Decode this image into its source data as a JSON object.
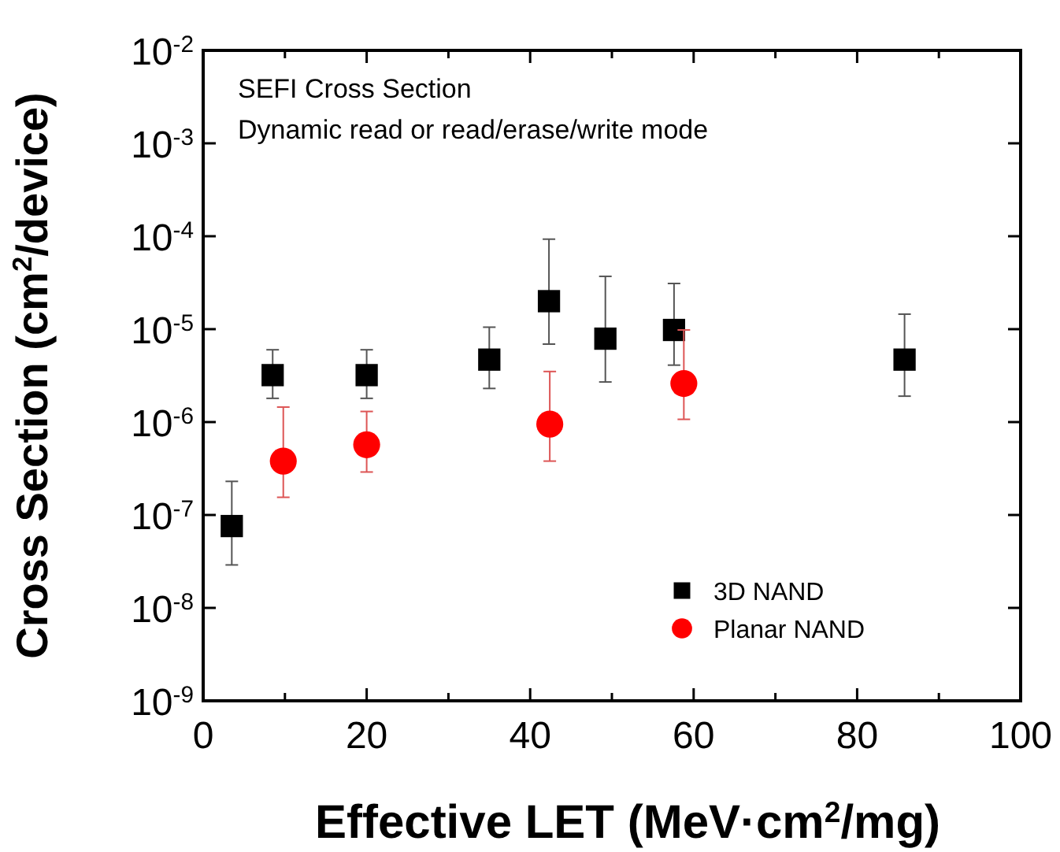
{
  "chart_data": {
    "type": "scatter",
    "xlabel": "Effective LET (MeV·cm$^{2}$/mg)",
    "ylabel": "Cross Section (cm$^{2}$/device)",
    "annotations": [
      "SEFI Cross Section",
      "Dynamic read or read/erase/write mode"
    ],
    "log": "y",
    "grid": false,
    "legend": "bottom right",
    "xlim": [
      0,
      100
    ],
    "xticks": [
      0,
      {
        "value": 10,
        "label": null
      },
      20,
      {
        "value": 30,
        "label": null
      },
      40,
      {
        "value": 50,
        "label": null
      },
      60,
      {
        "value": 70,
        "label": null
      },
      80,
      {
        "value": 90,
        "label": null
      },
      100
    ],
    "ylim": [
      1e-09,
      0.01
    ],
    "yticks": [
      {
        "value": 1e-09,
        "label": "10$^{-9}$"
      },
      {
        "value": 1e-08,
        "label": "10$^{-8}$"
      },
      {
        "value": 1e-07,
        "label": "10$^{-7}$"
      },
      {
        "value": 1e-06,
        "label": "10$^{-6}$"
      },
      {
        "value": 1e-05,
        "label": "10$^{-5}$"
      },
      {
        "value": 0.0001,
        "label": "10$^{-4}$"
      },
      {
        "value": 0.001,
        "label": "10$^{-3}$"
      },
      {
        "value": 0.01,
        "label": "10$^{-2}$"
      }
    ],
    "series": [
      {
        "name": "3D NAND",
        "color": "#000000",
        "marker": "square",
        "x": [
          3.5,
          8.5,
          20,
          35,
          42.3,
          49.2,
          57.6,
          85.8
        ],
        "values": [
          7.6e-08,
          3.2e-06,
          3.2e-06,
          4.7e-06,
          2e-05,
          7.9e-06,
          9.8e-06,
          4.7e-06
        ],
        "errors": [
          [
            2.9e-08,
            2.3e-07
          ],
          [
            1.8e-06,
            6e-06
          ],
          [
            1.8e-06,
            6e-06
          ],
          [
            2.3e-06,
            1.05e-05
          ],
          [
            6.9e-06,
            9.3e-05
          ],
          [
            2.7e-06,
            3.7e-05
          ],
          [
            4.1e-06,
            3.1e-05
          ],
          [
            1.9e-06,
            1.45e-05
          ]
        ]
      },
      {
        "name": "Planar NAND",
        "color": "#ff0000",
        "marker": "circle",
        "x": [
          9.8,
          20,
          42.4,
          58.8
        ],
        "values": [
          3.8e-07,
          5.7e-07,
          9.5e-07,
          2.6e-06
        ],
        "errors": [
          [
            1.55e-07,
            1.45e-06
          ],
          [
            2.9e-07,
            1.3e-06
          ],
          [
            3.8e-07,
            3.5e-06
          ],
          [
            1.07e-06,
            9.8e-06
          ]
        ]
      }
    ]
  }
}
